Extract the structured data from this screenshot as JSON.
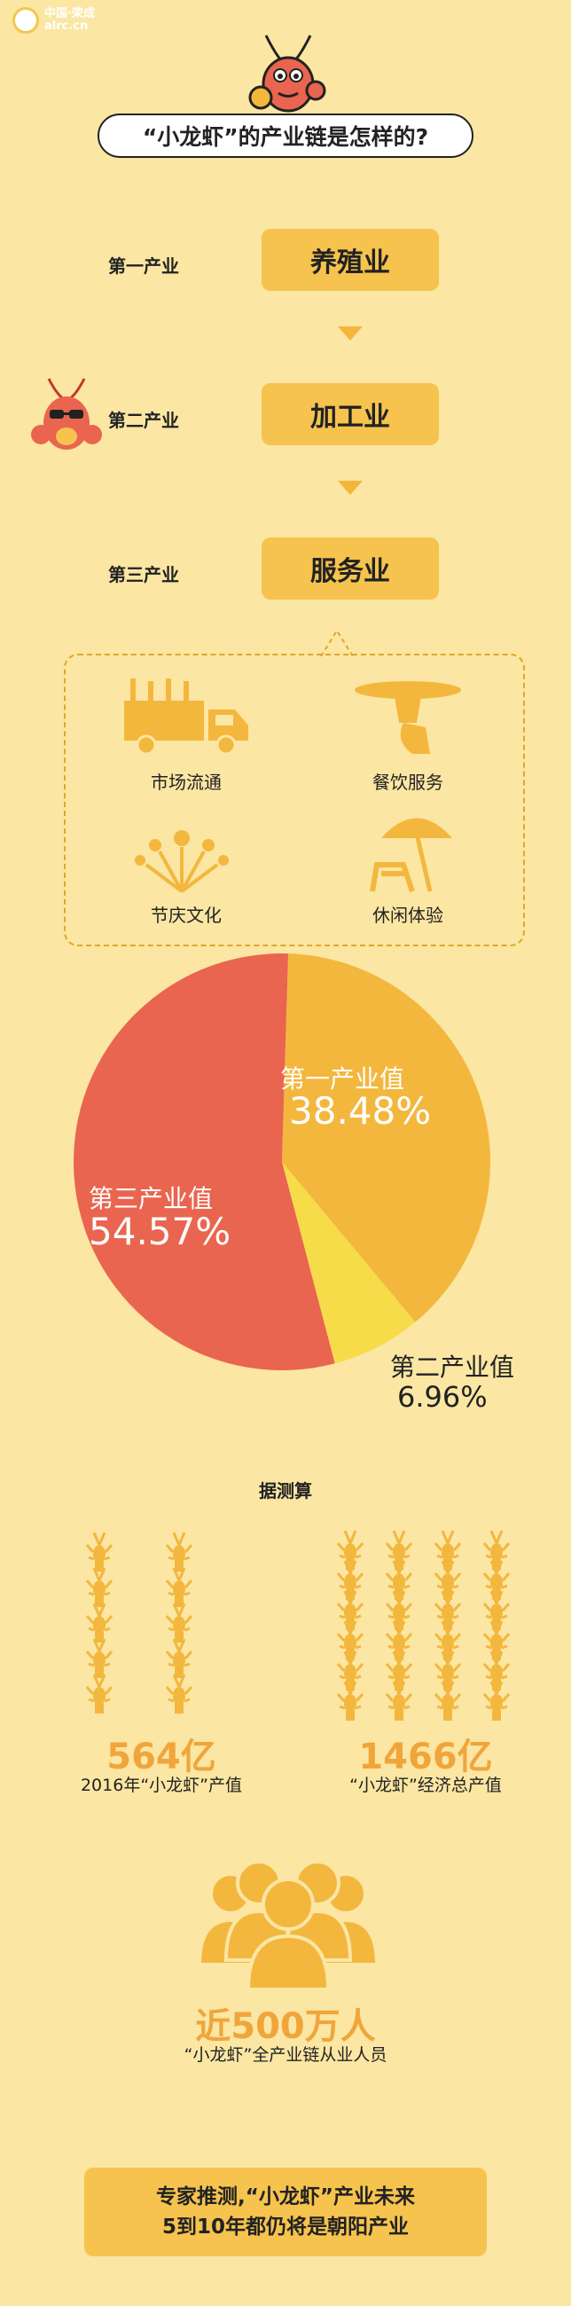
{
  "watermark": {
    "line1": "中国·荣成",
    "line2": "alrc.cn"
  },
  "title": "“小龙虾”的产业链是怎样的?",
  "levels": [
    {
      "label": "第一产业",
      "box": "养殖业"
    },
    {
      "label": "第二产业",
      "box": "加工业"
    },
    {
      "label": "第三产业",
      "box": "服务业"
    }
  ],
  "services": [
    "市场流通",
    "餐饮服务",
    "节庆文化",
    "休闲体验"
  ],
  "chart_data": {
    "type": "pie",
    "slices": [
      {
        "label": "第一产业值",
        "value": 38.48,
        "pct": "38.48%",
        "color": "#f3b73e"
      },
      {
        "label": "第二产业值",
        "value": 6.96,
        "pct": "6.96%",
        "color": "#f7dc4a"
      },
      {
        "label": "第三产业值",
        "value": 54.57,
        "pct": "54.57%",
        "color": "#e9654f"
      }
    ]
  },
  "estimate_heading": "据测算",
  "stats": [
    {
      "value": "564亿",
      "desc": "2016年“小龙虾”产值"
    },
    {
      "value": "1466亿",
      "desc": "“小龙虾”经济总产值"
    }
  ],
  "employment": {
    "value": "近500万人",
    "desc": "“小龙虾”全产业链从业人员"
  },
  "conclusion": {
    "line1": "专家推测,“小龙虾”产业未来",
    "line2": "5到10年都仍将是朝阳产业"
  },
  "colors": {
    "background": "#fbe6a3",
    "box": "#f6c34e",
    "accent": "#f0a53b"
  }
}
